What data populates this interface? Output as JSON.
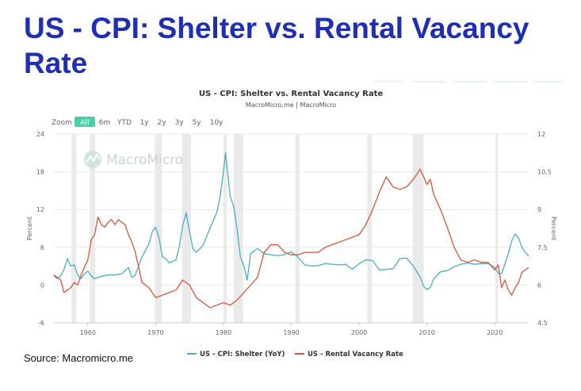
{
  "headline": "US - CPI: Shelter vs. Rental Vacancy Rate",
  "source": "Source: Macromicro.me",
  "chart_data": {
    "type": "line",
    "title": "US - CPI: Shelter vs. Rental Vacancy Rate",
    "subtitle": "MacroMicro.me | MacroMicro",
    "watermark": "MacroMicro",
    "zoom_label": "Zoom",
    "range_buttons": [
      "All",
      "6m",
      "YTD",
      "1y",
      "2y",
      "3y",
      "5y",
      "10y"
    ],
    "active_range": "All",
    "grid": true,
    "legend_position": "bottom",
    "x_ticks": [
      1960,
      1970,
      1980,
      1990,
      2000,
      2010,
      2020
    ],
    "xlim": [
      1955,
      2025
    ],
    "left_axis": {
      "label": "Percent",
      "ylim": [
        -6,
        24
      ],
      "ticks": [
        "-6",
        "0",
        "6",
        "12",
        "18",
        "24"
      ]
    },
    "right_axis": {
      "label": "Percent",
      "ylim": [
        4.5,
        12
      ],
      "ticks": [
        "4.5",
        "6",
        "7.5",
        "9",
        "10.5",
        "12"
      ]
    },
    "recessions": [
      [
        1957.6,
        1958.3
      ],
      [
        1960.3,
        1961.1
      ],
      [
        1969.9,
        1970.9
      ],
      [
        1973.9,
        1975.2
      ],
      [
        1980.0,
        1980.5
      ],
      [
        1981.5,
        1982.9
      ],
      [
        1990.6,
        1991.2
      ],
      [
        2001.2,
        2001.9
      ],
      [
        2007.9,
        2009.5
      ],
      [
        2020.1,
        2020.4
      ]
    ],
    "colors": {
      "shelter": "#4bacc6",
      "vacancy": "#d9553a",
      "recession": "#e6e6e6",
      "active_button": "#48d0a8"
    },
    "series": [
      {
        "name": "US - CPI: Shelter (YoY)",
        "axis": "left",
        "x": [
          1955,
          1955.5,
          1956,
          1956.5,
          1957,
          1957.5,
          1958,
          1958.5,
          1959,
          1959.5,
          1960,
          1960.5,
          1961,
          1962,
          1963,
          1964,
          1965,
          1966,
          1966.5,
          1967,
          1968,
          1969,
          1969.5,
          1970,
          1970.5,
          1971,
          1971.5,
          1972,
          1973,
          1973.5,
          1974,
          1974.5,
          1975,
          1975.5,
          1976,
          1977,
          1978,
          1979,
          1979.5,
          1980,
          1980.3,
          1980.8,
          1981,
          1981.5,
          1982,
          1982.5,
          1983,
          1983.5,
          1984,
          1985,
          1986,
          1987,
          1988,
          1989,
          1990,
          1991,
          1992,
          1993,
          1994,
          1995,
          1996,
          1997,
          1998,
          1999,
          2000,
          2001,
          2002,
          2003,
          2004,
          2005,
          2006,
          2007,
          2008,
          2009,
          2009.5,
          2010,
          2010.5,
          2011,
          2012,
          2013,
          2014,
          2015,
          2016,
          2017,
          2018,
          2019,
          2020,
          2020.5,
          2021,
          2022,
          2022.5,
          2023,
          2023.5,
          2024,
          2024.5,
          2025
        ],
        "values": [
          1.5,
          1.0,
          1.5,
          2.5,
          4.2,
          3.0,
          3.2,
          1.6,
          1.0,
          1.8,
          2.2,
          1.5,
          1.0,
          1.4,
          1.6,
          1.6,
          1.8,
          2.8,
          1.2,
          1.6,
          4.5,
          6.5,
          8.5,
          9.2,
          7.5,
          4.5,
          4.2,
          3.5,
          4.0,
          6.2,
          9.5,
          11.5,
          8.5,
          5.8,
          5.2,
          6.3,
          9.0,
          11.5,
          14.0,
          18.0,
          21.0,
          16.0,
          14.0,
          12.5,
          9.0,
          4.5,
          3.0,
          0.8,
          5.0,
          5.8,
          5.0,
          4.8,
          4.7,
          4.8,
          5.3,
          4.4,
          3.2,
          3.0,
          3.1,
          3.4,
          3.3,
          3.2,
          3.3,
          2.5,
          3.4,
          4.0,
          3.9,
          2.4,
          2.5,
          2.6,
          4.2,
          4.3,
          3.0,
          1.3,
          -0.2,
          -0.7,
          -0.4,
          1.0,
          2.1,
          2.3,
          2.9,
          3.3,
          3.5,
          3.3,
          3.4,
          3.4,
          2.8,
          1.9,
          1.8,
          5.0,
          7.0,
          8.1,
          7.5,
          6.0,
          5.2,
          4.6
        ]
      },
      {
        "name": "US - Rental Vacancy Rate",
        "axis": "right",
        "x": [
          1955,
          1955.5,
          1956,
          1956.5,
          1957,
          1957.5,
          1958,
          1958.5,
          1959,
          1959.5,
          1960,
          1960.5,
          1961,
          1961.5,
          1962,
          1962.5,
          1963,
          1963.5,
          1964,
          1964.5,
          1965,
          1965.5,
          1966,
          1966.5,
          1967,
          1967.5,
          1968,
          1969,
          1970,
          1971,
          1972,
          1973,
          1974,
          1975,
          1976,
          1977,
          1978,
          1979,
          1980,
          1981,
          1982,
          1983,
          1984,
          1985,
          1986,
          1987,
          1988,
          1989,
          1990,
          1991,
          1992,
          1993,
          1994,
          1995,
          1996,
          1997,
          1998,
          1999,
          2000,
          2001,
          2002,
          2003,
          2004,
          2005,
          2006,
          2007,
          2008,
          2009,
          2009.5,
          2010,
          2010.5,
          2011,
          2012,
          2013,
          2014,
          2015,
          2016,
          2017,
          2018,
          2019,
          2020,
          2020.5,
          2021,
          2021.5,
          2022,
          2022.5,
          2023,
          2023.5,
          2024,
          2024.5,
          2025
        ],
        "values": [
          6.4,
          6.3,
          6.2,
          5.7,
          5.8,
          5.9,
          6.1,
          6.0,
          6.4,
          6.7,
          7.0,
          7.8,
          8.0,
          8.7,
          8.4,
          8.3,
          8.5,
          8.6,
          8.4,
          8.6,
          8.5,
          8.4,
          8.0,
          7.7,
          7.3,
          6.7,
          6.1,
          5.9,
          5.5,
          5.6,
          5.7,
          5.8,
          6.2,
          6.0,
          5.5,
          5.3,
          5.1,
          5.2,
          5.3,
          5.2,
          5.4,
          5.7,
          6.0,
          6.3,
          7.3,
          7.6,
          7.6,
          7.3,
          7.2,
          7.2,
          7.3,
          7.3,
          7.3,
          7.5,
          7.6,
          7.7,
          7.8,
          7.9,
          8.0,
          8.4,
          9.0,
          9.7,
          10.3,
          9.9,
          9.8,
          9.9,
          10.2,
          10.6,
          10.3,
          10.0,
          10.2,
          9.6,
          9.0,
          8.3,
          7.5,
          7.0,
          6.9,
          7.0,
          6.9,
          6.9,
          6.6,
          6.8,
          5.9,
          6.2,
          5.8,
          5.6,
          5.9,
          6.1,
          6.5,
          6.6,
          6.7
        ]
      }
    ]
  }
}
